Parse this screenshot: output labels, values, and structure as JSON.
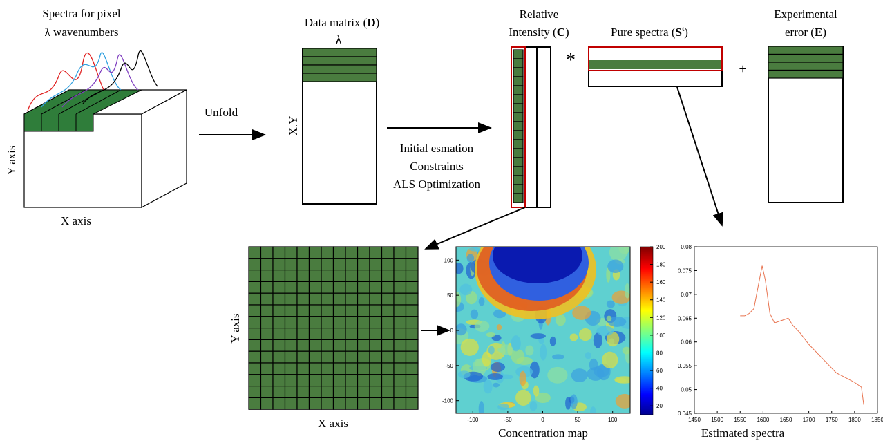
{
  "cube": {
    "title": [
      "Spectra for pixel",
      "λ wavenumbers"
    ],
    "y_axis": "Y axis",
    "x_axis": "X axis"
  },
  "unfold": "Unfold",
  "data_matrix": {
    "title_prefix": "Data matrix (",
    "symbol": "D",
    "title_suffix": ")",
    "column_label": "λ",
    "row_label": "X.Y"
  },
  "algorithm": {
    "steps": [
      "Initial esmation",
      "Constraints",
      "ALS Optimization"
    ]
  },
  "intensity": {
    "title_line1": "Relative",
    "title_prefix": "Intensity (",
    "symbol": "C",
    "title_suffix": ")"
  },
  "multiply": "*",
  "pure_spectra": {
    "title_prefix": "Pure spectra (",
    "symbol": "S",
    "superscript": "t",
    "title_suffix": ")"
  },
  "plus": "+",
  "error": {
    "title_line1": "Experimental",
    "title_prefix": "error (",
    "symbol": "E",
    "title_suffix": ")"
  },
  "pixel_grid": {
    "y_axis": "Y axis",
    "x_axis": "X axis"
  },
  "concentration_map": {
    "title": "Concentration map",
    "xlim": [
      -124,
      125
    ],
    "ylim": [
      -118,
      119
    ],
    "xticks": [
      -100,
      -50,
      0,
      50,
      100
    ],
    "yticks": [
      100,
      50,
      0,
      -50,
      -100
    ],
    "colorbar": {
      "clim": [
        10,
        200
      ],
      "ticks": [
        200,
        180,
        160,
        140,
        120,
        100,
        80,
        60,
        40,
        20
      ]
    }
  },
  "estimated_spectra": {
    "title": "Estimated spectra",
    "xlim": [
      1450,
      1850
    ],
    "ylim": [
      0.045,
      0.08
    ],
    "xticks": [
      1450,
      1500,
      1550,
      1600,
      1650,
      1700,
      1750,
      1800,
      1850
    ],
    "yticks": [
      0.045,
      0.05,
      0.055,
      0.06,
      0.065,
      0.07,
      0.075,
      0.08
    ],
    "color": "#e8734f",
    "x": [
      1550,
      1560,
      1570,
      1580,
      1590,
      1598,
      1605,
      1615,
      1625,
      1640,
      1655,
      1665,
      1680,
      1700,
      1720,
      1740,
      1760,
      1780,
      1800,
      1815,
      1820
    ],
    "values": [
      0.0655,
      0.0655,
      0.066,
      0.067,
      0.072,
      0.076,
      0.073,
      0.066,
      0.064,
      0.0645,
      0.065,
      0.0635,
      0.062,
      0.0595,
      0.0575,
      0.0555,
      0.0535,
      0.0525,
      0.0515,
      0.0505,
      0.0468
    ]
  }
}
